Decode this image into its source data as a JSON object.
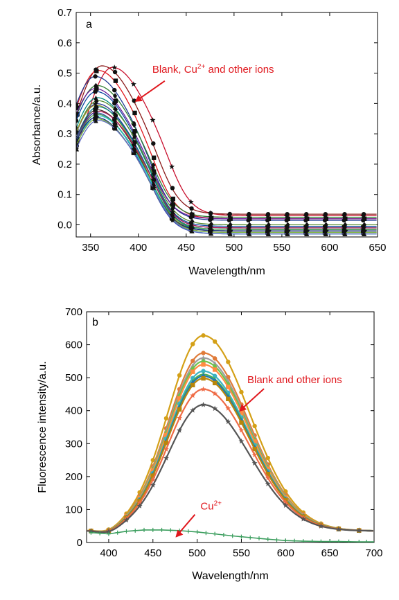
{
  "chart_data": [
    {
      "type": "line",
      "panel_label": "a",
      "xlabel": "Wavelength/nm",
      "ylabel": "Absorbance/a.u.",
      "xlim": [
        335,
        650
      ],
      "ylim": [
        -0.04,
        0.7
      ],
      "xticks": [
        350,
        400,
        450,
        500,
        550,
        600,
        650
      ],
      "yticks": [
        0.0,
        0.1,
        0.2,
        0.3,
        0.4,
        0.5,
        0.6,
        0.7
      ],
      "xtick_labels": [
        "350",
        "400",
        "450",
        "500",
        "550",
        "600",
        "650"
      ],
      "ytick_labels": [
        "0.0",
        "0.1",
        "0.2",
        "0.3",
        "0.4",
        "0.5",
        "0.6",
        "0.7"
      ],
      "annotation": {
        "text": "Blank, Cu",
        "sup": "2+",
        "tail": " and other ions",
        "x": 395,
        "y": 0.36
      },
      "marker_x": [
        335,
        355,
        375,
        395,
        415,
        435,
        455,
        475,
        495,
        515,
        535,
        555,
        575,
        595,
        615,
        635
      ],
      "series": [
        {
          "color": "#c8102e",
          "marker": "star",
          "peak_x": 373,
          "peak": 0.52,
          "tail": 0.03
        },
        {
          "color": "#8b1a1a",
          "marker": "circle",
          "peak_x": 362,
          "peak": 0.525,
          "tail": 0.035
        },
        {
          "color": "#e0171d",
          "marker": "square",
          "peak_x": 358,
          "peak": 0.51,
          "tail": 0.02
        },
        {
          "color": "#1f3a93",
          "marker": "circle",
          "peak_x": 355,
          "peak": 0.49,
          "tail": 0.015
        },
        {
          "color": "#2e7d32",
          "marker": "diamond",
          "peak_x": 357,
          "peak": 0.46,
          "tail": 0.025
        },
        {
          "color": "#6a1b9a",
          "marker": "square",
          "peak_x": 355,
          "peak": 0.45,
          "tail": 0.02
        },
        {
          "color": "#0d47a1",
          "marker": "circle",
          "peak_x": 356,
          "peak": 0.44,
          "tail": -0.005
        },
        {
          "color": "#00897b",
          "marker": "triangle",
          "peak_x": 357,
          "peak": 0.42,
          "tail": -0.01
        },
        {
          "color": "#558b2f",
          "marker": "diamond",
          "peak_x": 358,
          "peak": 0.41,
          "tail": 0.0
        },
        {
          "color": "#283593",
          "marker": "star",
          "peak_x": 357,
          "peak": 0.4,
          "tail": -0.015
        },
        {
          "color": "#9e9d24",
          "marker": "triangle",
          "peak_x": 356,
          "peak": 0.395,
          "tail": -0.02
        },
        {
          "color": "#00838f",
          "marker": "circle",
          "peak_x": 358,
          "peak": 0.39,
          "tail": -0.02
        },
        {
          "color": "#4e342e",
          "marker": "square",
          "peak_x": 357,
          "peak": 0.38,
          "tail": -0.025
        },
        {
          "color": "#ad1457",
          "marker": "star",
          "peak_x": 358,
          "peak": 0.375,
          "tail": -0.01
        },
        {
          "color": "#3949ab",
          "marker": "triangle",
          "peak_x": 356,
          "peak": 0.37,
          "tail": -0.03
        },
        {
          "color": "#43a047",
          "marker": "diamond",
          "peak_x": 357,
          "peak": 0.365,
          "tail": -0.015
        },
        {
          "color": "#26c6da",
          "marker": "circle",
          "peak_x": 358,
          "peak": 0.36,
          "tail": -0.03
        },
        {
          "color": "#1a237e",
          "marker": "star",
          "peak_x": 356,
          "peak": 0.355,
          "tail": -0.02
        },
        {
          "color": "#7cb342",
          "marker": "square",
          "peak_x": 357,
          "peak": 0.35,
          "tail": -0.025
        },
        {
          "color": "#5c6bc0",
          "marker": "triangle",
          "peak_x": 358,
          "peak": 0.345,
          "tail": -0.03
        }
      ]
    },
    {
      "type": "line",
      "panel_label": "b",
      "xlabel": "Wavelength/nm",
      "ylabel": "Fluorescence intensity/a.u.",
      "xlim": [
        375,
        700
      ],
      "ylim": [
        0,
        700
      ],
      "xticks": [
        400,
        450,
        500,
        550,
        600,
        650,
        700
      ],
      "yticks": [
        0,
        100,
        200,
        300,
        400,
        500,
        600,
        700
      ],
      "xtick_labels": [
        "400",
        "450",
        "500",
        "550",
        "600",
        "650",
        "700"
      ],
      "ytick_labels": [
        "0",
        "100",
        "200",
        "300",
        "400",
        "500",
        "600",
        "700"
      ],
      "annotation": {
        "text": "Blank and other ions",
        "x": 552,
        "y": 500
      },
      "cu_label": {
        "text": "Cu",
        "sup": "2+",
        "x": 510,
        "y": 110
      },
      "marker_x": [
        380,
        400,
        420,
        435,
        450,
        465,
        480,
        495,
        507,
        520,
        535,
        550,
        565,
        580,
        600,
        620,
        640,
        660,
        683
      ],
      "baseline": 35,
      "series": [
        {
          "color": "#d4a017",
          "marker": "circle",
          "peak": 628
        },
        {
          "color": "#e07b39",
          "marker": "circle",
          "peak": 575
        },
        {
          "color": "#9c9c9c",
          "marker": "triangle",
          "peak": 560
        },
        {
          "color": "#6cc24a",
          "marker": "diamond",
          "peak": 550
        },
        {
          "color": "#ff8c42",
          "marker": "square",
          "peak": 540
        },
        {
          "color": "#3bb3c3",
          "marker": "circle",
          "peak": 520
        },
        {
          "color": "#4caf50",
          "marker": "triangle",
          "peak": 510
        },
        {
          "color": "#1f77b4",
          "marker": "diamond",
          "peak": 505
        },
        {
          "color": "#b8860b",
          "marker": "square",
          "peak": 498
        },
        {
          "color": "#ef6c47",
          "marker": "star",
          "peak": 465
        },
        {
          "color": "#555555",
          "marker": "star",
          "peak": 418
        }
      ],
      "cu_series": {
        "color": "#3a9d5d",
        "marker": "plus",
        "x": [
          380,
          400,
          420,
          440,
          460,
          480,
          500,
          520,
          540,
          560,
          580,
          600,
          620,
          640,
          660,
          683,
          700
        ],
        "y": [
          30,
          26,
          34,
          38,
          38,
          36,
          32,
          26,
          20,
          15,
          10,
          6,
          4,
          3,
          3,
          2,
          2
        ]
      }
    }
  ]
}
